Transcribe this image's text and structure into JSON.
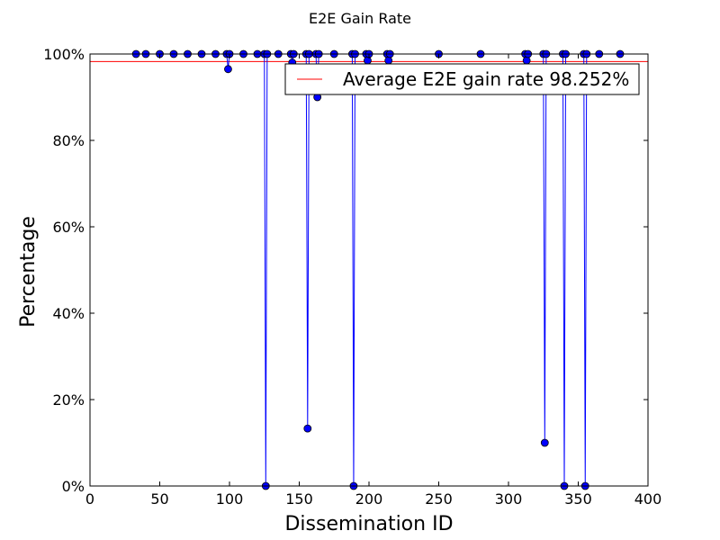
{
  "chart_data": {
    "type": "line",
    "title": "E2E Gain Rate",
    "xlabel": "Dissemination ID",
    "ylabel": "Percentage",
    "xlim": [
      0,
      400
    ],
    "ylim": [
      0,
      100
    ],
    "xticks": [
      0,
      50,
      100,
      150,
      200,
      250,
      300,
      350,
      400
    ],
    "yticks": [
      0,
      20,
      40,
      60,
      80,
      100
    ],
    "ytick_labels": [
      "0%",
      "20%",
      "40%",
      "60%",
      "80%",
      "100%"
    ],
    "grid": false,
    "legend_position": "top-right",
    "series": [
      {
        "name": "E2E gain rate",
        "color": "#0000ff",
        "marker": "circle",
        "x": [
          33,
          40,
          50,
          60,
          70,
          80,
          90,
          98,
          99,
          100,
          110,
          120,
          125,
          126,
          127,
          135,
          144,
          145,
          146,
          155,
          156,
          157,
          162,
          163,
          164,
          175,
          188,
          189,
          190,
          198,
          199,
          200,
          213,
          214,
          215,
          250,
          280,
          312,
          313,
          314,
          325,
          326,
          327,
          339,
          340,
          341,
          354,
          355,
          356,
          365,
          380
        ],
        "y": [
          100,
          100,
          100,
          100,
          100,
          100,
          100,
          100,
          96.5,
          100,
          100,
          100,
          100,
          0,
          100,
          100,
          100,
          98,
          100,
          100,
          13.3,
          100,
          100,
          90,
          100,
          100,
          100,
          0,
          100,
          100,
          98.5,
          100,
          100,
          98.5,
          100,
          100,
          100,
          100,
          98.5,
          100,
          100,
          10,
          100,
          100,
          0,
          100,
          100,
          0,
          100,
          100,
          100
        ]
      }
    ],
    "reference_lines": [
      {
        "name": "Average E2E gain rate 98.252%",
        "y": 98.252,
        "color": "#ff0000"
      }
    ]
  }
}
